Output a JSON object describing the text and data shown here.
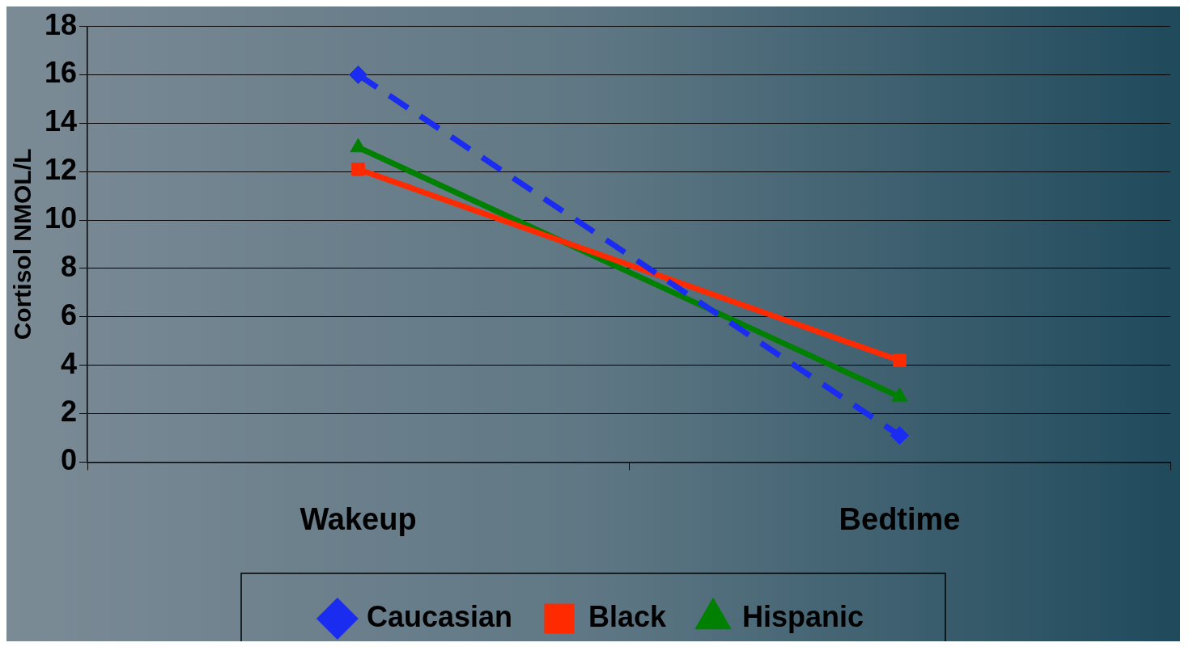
{
  "chart_data": {
    "type": "line",
    "ylabel": "Cortisol NMOL/L",
    "categories": [
      "Wakeup",
      "Bedtime"
    ],
    "series": [
      {
        "name": "Caucasian",
        "color": "#1a2cf0",
        "values": [
          16.0,
          1.1
        ],
        "marker": "diamond",
        "line_style": "dashed"
      },
      {
        "name": "Black",
        "color": "#ff2a00",
        "values": [
          12.1,
          4.2
        ],
        "marker": "square",
        "line_style": "solid"
      },
      {
        "name": "Hispanic",
        "color": "#008000",
        "values": [
          13.0,
          2.7
        ],
        "marker": "triangle",
        "line_style": "solid"
      }
    ],
    "ylim": [
      0,
      18
    ],
    "yticks": [
      0,
      2,
      4,
      6,
      8,
      10,
      12,
      14,
      16,
      18
    ],
    "grid": "y",
    "legend": "bottom"
  }
}
